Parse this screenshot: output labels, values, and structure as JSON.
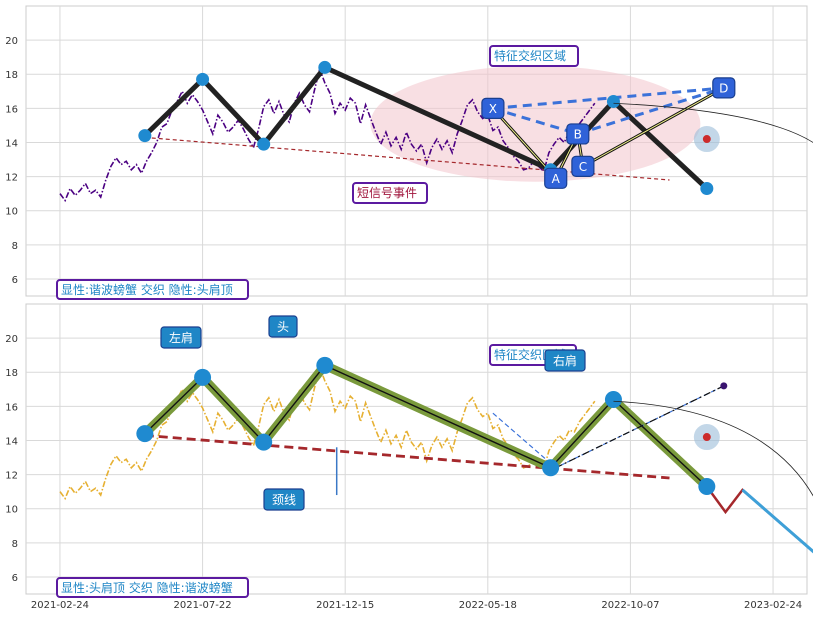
{
  "chart_data": [
    {
      "type": "line",
      "panel": "top",
      "ylim": [
        5,
        22
      ],
      "yticks": [
        6,
        8,
        10,
        12,
        14,
        16,
        18,
        20
      ],
      "grid": true,
      "price_color": "#4b0082",
      "price_series": [
        [
          0,
          11.0
        ],
        [
          3,
          10.6
        ],
        [
          6,
          11.3
        ],
        [
          9,
          10.9
        ],
        [
          12,
          11.2
        ],
        [
          15,
          11.6
        ],
        [
          18,
          11.0
        ],
        [
          21,
          11.2
        ],
        [
          24,
          10.8
        ],
        [
          27,
          11.8
        ],
        [
          30,
          12.6
        ],
        [
          33,
          13.1
        ],
        [
          36,
          12.7
        ],
        [
          39,
          12.9
        ],
        [
          42,
          12.4
        ],
        [
          45,
          12.7
        ],
        [
          48,
          12.2
        ],
        [
          51,
          12.9
        ],
        [
          54,
          13.4
        ],
        [
          57,
          14.0
        ],
        [
          60,
          14.9
        ],
        [
          63,
          15.1
        ],
        [
          66,
          15.9
        ],
        [
          69,
          16.4
        ],
        [
          72,
          17.0
        ],
        [
          75,
          16.3
        ],
        [
          78,
          16.8
        ],
        [
          81,
          16.4
        ],
        [
          84,
          15.9
        ],
        [
          87,
          15.2
        ],
        [
          90,
          14.5
        ],
        [
          93,
          15.6
        ],
        [
          96,
          15.2
        ],
        [
          99,
          14.6
        ],
        [
          102,
          14.9
        ],
        [
          105,
          15.3
        ],
        [
          108,
          14.8
        ],
        [
          111,
          14.2
        ],
        [
          114,
          13.7
        ],
        [
          117,
          14.8
        ],
        [
          120,
          16.1
        ],
        [
          123,
          16.5
        ],
        [
          126,
          15.7
        ],
        [
          129,
          16.4
        ],
        [
          132,
          15.6
        ],
        [
          135,
          15.2
        ],
        [
          138,
          16.3
        ],
        [
          141,
          16.9
        ],
        [
          144,
          16.2
        ],
        [
          147,
          15.8
        ],
        [
          150,
          17.1
        ],
        [
          153,
          18.3
        ],
        [
          156,
          17.5
        ],
        [
          159,
          16.9
        ],
        [
          162,
          15.7
        ],
        [
          165,
          16.3
        ],
        [
          168,
          15.9
        ],
        [
          171,
          16.6
        ],
        [
          174,
          16.3
        ],
        [
          177,
          15.1
        ],
        [
          180,
          16.2
        ],
        [
          183,
          15.4
        ],
        [
          186,
          14.6
        ],
        [
          189,
          13.9
        ],
        [
          192,
          14.6
        ],
        [
          195,
          13.8
        ],
        [
          198,
          14.3
        ],
        [
          201,
          13.6
        ],
        [
          204,
          14.6
        ],
        [
          207,
          13.9
        ],
        [
          210,
          13.5
        ],
        [
          213,
          13.9
        ],
        [
          216,
          12.8
        ],
        [
          219,
          13.7
        ],
        [
          222,
          14.2
        ],
        [
          225,
          13.6
        ],
        [
          228,
          14.1
        ],
        [
          231,
          13.4
        ],
        [
          234,
          14.5
        ],
        [
          237,
          15.3
        ],
        [
          240,
          16.2
        ],
        [
          243,
          16.5
        ],
        [
          246,
          15.8
        ],
        [
          249,
          15.4
        ],
        [
          252,
          15.6
        ],
        [
          255,
          14.7
        ],
        [
          258,
          14.9
        ],
        [
          261,
          14.1
        ],
        [
          264,
          13.7
        ],
        [
          267,
          13.2
        ],
        [
          270,
          12.9
        ],
        [
          273,
          12.4
        ],
        [
          276,
          12.5
        ],
        [
          279,
          12.9
        ],
        [
          282,
          12.6
        ],
        [
          285,
          12.3
        ],
        [
          288,
          13.4
        ],
        [
          291,
          13.9
        ],
        [
          294,
          14.3
        ],
        [
          297,
          14.0
        ],
        [
          300,
          14.6
        ],
        [
          303,
          14.5
        ],
        [
          306,
          15.1
        ],
        [
          309,
          15.5
        ],
        [
          312,
          15.9
        ],
        [
          315,
          16.3
        ]
      ],
      "pattern_points": [
        [
          50,
          14.4
        ],
        [
          84,
          17.7
        ],
        [
          120,
          13.9
        ],
        [
          156,
          18.4
        ],
        [
          289,
          12.4
        ],
        [
          326,
          16.4
        ],
        [
          381,
          11.3
        ]
      ],
      "neckline": [
        [
          50,
          14.3
        ],
        [
          359,
          11.8
        ]
      ],
      "harmonic_points": {
        "X": [
          255,
          16.0
        ],
        "A": [
          292,
          11.9
        ],
        "B": [
          305,
          14.5
        ],
        "C": [
          308,
          12.6
        ],
        "D": [
          391,
          17.2
        ]
      },
      "harmonic_drive": [
        [
          255,
          16.0
        ],
        [
          292,
          11.9
        ],
        [
          305,
          14.5
        ],
        [
          308,
          12.6
        ],
        [
          391,
          17.2
        ]
      ],
      "harmonic_ellipse": {
        "cx": 280,
        "cy": 15.1,
        "label": "特征交织区域"
      },
      "signal_points": [
        [
          286,
          12.4
        ],
        [
          308,
          13.2
        ]
      ],
      "signal_label": "短信号事件",
      "target": [
        381,
        14.2
      ],
      "title": "显性:谐波螃蟹 交织 隐性:头肩顶"
    },
    {
      "type": "line",
      "panel": "bottom",
      "ylim": [
        5,
        22
      ],
      "yticks": [
        6,
        8,
        10,
        12,
        14,
        16,
        18,
        20
      ],
      "grid": true,
      "price_color": "#e6b032",
      "price_series": [
        [
          0,
          11.0
        ],
        [
          3,
          10.6
        ],
        [
          6,
          11.3
        ],
        [
          9,
          10.9
        ],
        [
          12,
          11.2
        ],
        [
          15,
          11.6
        ],
        [
          18,
          11.0
        ],
        [
          21,
          11.2
        ],
        [
          24,
          10.8
        ],
        [
          27,
          11.8
        ],
        [
          30,
          12.6
        ],
        [
          33,
          13.1
        ],
        [
          36,
          12.7
        ],
        [
          39,
          12.9
        ],
        [
          42,
          12.4
        ],
        [
          45,
          12.7
        ],
        [
          48,
          12.2
        ],
        [
          51,
          12.9
        ],
        [
          54,
          13.4
        ],
        [
          57,
          14.0
        ],
        [
          60,
          14.9
        ],
        [
          63,
          15.1
        ],
        [
          66,
          15.9
        ],
        [
          69,
          16.4
        ],
        [
          72,
          17.0
        ],
        [
          75,
          16.3
        ],
        [
          78,
          16.8
        ],
        [
          81,
          16.4
        ],
        [
          84,
          15.9
        ],
        [
          87,
          15.2
        ],
        [
          90,
          14.5
        ],
        [
          93,
          15.6
        ],
        [
          96,
          15.2
        ],
        [
          99,
          14.6
        ],
        [
          102,
          14.9
        ],
        [
          105,
          15.3
        ],
        [
          108,
          14.8
        ],
        [
          111,
          14.2
        ],
        [
          114,
          13.7
        ],
        [
          117,
          14.8
        ],
        [
          120,
          16.1
        ],
        [
          123,
          16.5
        ],
        [
          126,
          15.7
        ],
        [
          129,
          16.4
        ],
        [
          132,
          15.6
        ],
        [
          135,
          15.2
        ],
        [
          138,
          16.3
        ],
        [
          141,
          16.9
        ],
        [
          144,
          16.2
        ],
        [
          147,
          15.8
        ],
        [
          150,
          17.1
        ],
        [
          153,
          18.3
        ],
        [
          156,
          17.5
        ],
        [
          159,
          16.9
        ],
        [
          162,
          15.7
        ],
        [
          165,
          16.3
        ],
        [
          168,
          15.9
        ],
        [
          171,
          16.6
        ],
        [
          174,
          16.3
        ],
        [
          177,
          15.1
        ],
        [
          180,
          16.2
        ],
        [
          183,
          15.4
        ],
        [
          186,
          14.6
        ],
        [
          189,
          13.9
        ],
        [
          192,
          14.6
        ],
        [
          195,
          13.8
        ],
        [
          198,
          14.3
        ],
        [
          201,
          13.6
        ],
        [
          204,
          14.6
        ],
        [
          207,
          13.9
        ],
        [
          210,
          13.5
        ],
        [
          213,
          13.9
        ],
        [
          216,
          12.8
        ],
        [
          219,
          13.7
        ],
        [
          222,
          14.2
        ],
        [
          225,
          13.6
        ],
        [
          228,
          14.1
        ],
        [
          231,
          13.4
        ],
        [
          234,
          14.5
        ],
        [
          237,
          15.3
        ],
        [
          240,
          16.2
        ],
        [
          243,
          16.5
        ],
        [
          246,
          15.8
        ],
        [
          249,
          15.4
        ],
        [
          252,
          15.6
        ],
        [
          255,
          14.7
        ],
        [
          258,
          14.9
        ],
        [
          261,
          14.1
        ],
        [
          264,
          13.7
        ],
        [
          267,
          13.2
        ],
        [
          270,
          12.9
        ],
        [
          273,
          12.4
        ],
        [
          276,
          12.5
        ],
        [
          279,
          12.9
        ],
        [
          282,
          12.6
        ],
        [
          285,
          12.3
        ],
        [
          288,
          13.4
        ],
        [
          291,
          13.9
        ],
        [
          294,
          14.3
        ],
        [
          297,
          14.0
        ],
        [
          300,
          14.6
        ],
        [
          303,
          14.5
        ],
        [
          306,
          15.1
        ],
        [
          309,
          15.5
        ],
        [
          312,
          15.9
        ],
        [
          315,
          16.3
        ]
      ],
      "pattern_points": [
        [
          50,
          14.4
        ],
        [
          84,
          17.7
        ],
        [
          120,
          13.9
        ],
        [
          156,
          18.4
        ],
        [
          289,
          12.4
        ],
        [
          326,
          16.4
        ],
        [
          381,
          11.3
        ]
      ],
      "neckline": [
        [
          50,
          14.3
        ],
        [
          359,
          11.8
        ]
      ],
      "projection": [
        [
          381,
          11.3
        ],
        [
          392,
          9.8
        ],
        [
          402,
          11.1
        ],
        [
          455,
          6.5
        ]
      ],
      "harmonic_dashed": [
        [
          255,
          15.6
        ],
        [
          292,
          12.4
        ],
        [
          391,
          17.2
        ]
      ],
      "labels": {
        "left_shoulder": "左肩",
        "head": "头",
        "right_shoulder": "右肩",
        "neckline": "颈线",
        "feature": "特征交织区域"
      },
      "target": [
        381,
        14.2
      ],
      "title": "显性:头肩顶 交织 隐性:谐波螃蟹"
    }
  ],
  "x_axis": {
    "ticks": [
      "2021-02-24",
      "2021-07-22",
      "2021-12-15",
      "2022-05-18",
      "2022-10-07",
      "2023-02-24"
    ],
    "tick_positions": [
      0,
      84,
      168,
      252,
      336,
      420
    ],
    "range": [
      -20,
      440
    ]
  }
}
